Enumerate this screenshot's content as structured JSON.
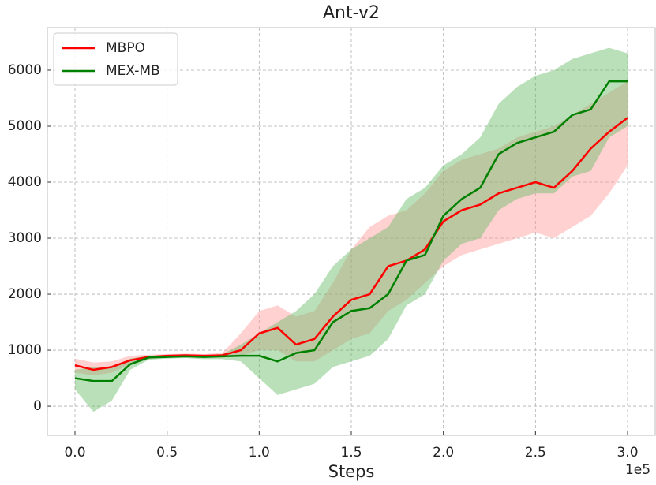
{
  "chart_data": {
    "type": "line",
    "title": "Ant-v2",
    "xlabel": "Steps",
    "x_offset_label": "1e5",
    "x": [
      0,
      10000,
      20000,
      30000,
      40000,
      50000,
      60000,
      70000,
      80000,
      90000,
      100000,
      110000,
      120000,
      130000,
      140000,
      150000,
      160000,
      170000,
      180000,
      190000,
      200000,
      210000,
      220000,
      230000,
      240000,
      250000,
      260000,
      270000,
      280000,
      290000,
      300000
    ],
    "series": [
      {
        "name": "MBPO",
        "color": "#ff0000",
        "band_color": "#ff9999",
        "values": [
          730,
          650,
          700,
          820,
          880,
          900,
          910,
          900,
          910,
          1000,
          1300,
          1400,
          1100,
          1200,
          1600,
          1900,
          2000,
          2500,
          2600,
          2800,
          3300,
          3500,
          3600,
          3800,
          3900,
          4000,
          3900,
          4200,
          4600,
          4900,
          5150
        ],
        "band_lower": [
          600,
          550,
          600,
          750,
          840,
          870,
          880,
          870,
          870,
          900,
          1000,
          1000,
          800,
          800,
          1000,
          1200,
          1300,
          1700,
          1900,
          2200,
          2500,
          2700,
          2800,
          2900,
          3000,
          3100,
          3000,
          3200,
          3400,
          3800,
          4300
        ],
        "band_upper": [
          850,
          780,
          800,
          900,
          920,
          930,
          940,
          930,
          950,
          1300,
          1700,
          1800,
          1600,
          1700,
          2200,
          2800,
          3200,
          3400,
          3500,
          3800,
          4200,
          4400,
          4500,
          4600,
          4800,
          4900,
          5000,
          5200,
          5400,
          5600,
          5800
        ]
      },
      {
        "name": "MEX-MB",
        "color": "#008000",
        "band_color": "#66bb66",
        "values": [
          500,
          450,
          450,
          750,
          870,
          880,
          890,
          880,
          890,
          900,
          900,
          800,
          950,
          1000,
          1500,
          1700,
          1750,
          2000,
          2600,
          2700,
          3400,
          3700,
          3900,
          4500,
          4700,
          4800,
          4900,
          5200,
          5300,
          5800,
          5800
        ],
        "band_lower": [
          300,
          -100,
          100,
          650,
          830,
          850,
          860,
          840,
          840,
          800,
          500,
          200,
          300,
          400,
          700,
          800,
          900,
          1200,
          1800,
          2000,
          2600,
          2900,
          3000,
          3500,
          3700,
          3800,
          3800,
          4100,
          4200,
          4800,
          5000
        ],
        "band_upper": [
          650,
          700,
          700,
          850,
          900,
          910,
          920,
          910,
          930,
          1100,
          1300,
          1500,
          1700,
          2000,
          2500,
          2800,
          3000,
          3200,
          3700,
          3900,
          4300,
          4500,
          4800,
          5400,
          5700,
          5900,
          6000,
          6200,
          6300,
          6400,
          6300
        ]
      }
    ],
    "xlim": [
      -15000,
      315000
    ],
    "ylim": [
      -520,
      6760
    ],
    "xticks": [
      {
        "value": 0,
        "label": "0.0"
      },
      {
        "value": 50000,
        "label": "0.5"
      },
      {
        "value": 100000,
        "label": "1.0"
      },
      {
        "value": 150000,
        "label": "1.5"
      },
      {
        "value": 200000,
        "label": "2.0"
      },
      {
        "value": 250000,
        "label": "2.5"
      },
      {
        "value": 300000,
        "label": "3.0"
      }
    ],
    "yticks": [
      0,
      1000,
      2000,
      3000,
      4000,
      5000,
      6000
    ],
    "grid": true,
    "legend": "upper left"
  }
}
